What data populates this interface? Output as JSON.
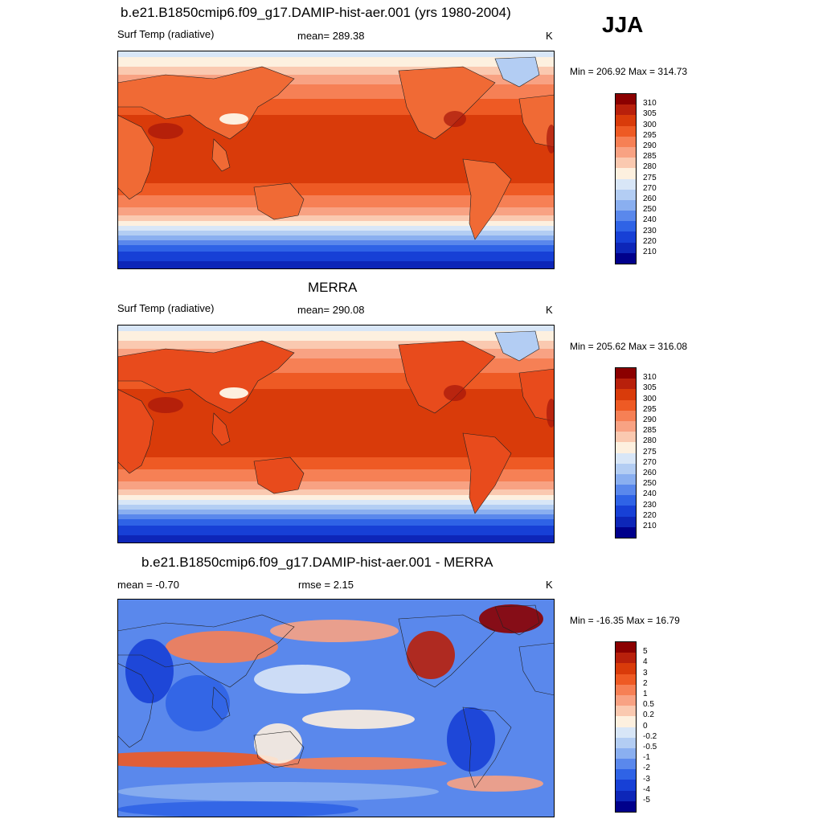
{
  "season": "JJA",
  "panels": [
    {
      "title": "b.e21.B1850cmip6.f09_g17.DAMIP-hist-aer.001 (yrs 1980-2004)",
      "left_label": "Surf Temp (radiative)",
      "center_label": "mean= 289.38",
      "units": "K",
      "minmax": "Min = 206.92 Max = 314.73",
      "colorbar": {
        "labels": [
          "310",
          "305",
          "300",
          "295",
          "290",
          "285",
          "280",
          "275",
          "270",
          "260",
          "250",
          "240",
          "230",
          "220",
          "210"
        ],
        "colors": [
          "#8b0000",
          "#b8200b",
          "#d93b0a",
          "#ee5a24",
          "#f68055",
          "#f8a283",
          "#fac9b0",
          "#fdf0df",
          "#d8e6f7",
          "#b3cdf3",
          "#8aaff0",
          "#5a88ec",
          "#2f63e6",
          "#1740d6",
          "#0d26b8",
          "#00008b"
        ]
      },
      "mapkind": "abs"
    },
    {
      "title": "MERRA",
      "left_label": "Surf Temp (radiative)",
      "center_label": "mean= 290.08",
      "units": "K",
      "minmax": "Min = 205.62 Max = 316.08",
      "colorbar": {
        "labels": [
          "310",
          "305",
          "300",
          "295",
          "290",
          "285",
          "280",
          "275",
          "270",
          "260",
          "250",
          "240",
          "230",
          "220",
          "210"
        ],
        "colors": [
          "#8b0000",
          "#b8200b",
          "#d93b0a",
          "#ee5a24",
          "#f68055",
          "#f8a283",
          "#fac9b0",
          "#fdf0df",
          "#d8e6f7",
          "#b3cdf3",
          "#8aaff0",
          "#5a88ec",
          "#2f63e6",
          "#1740d6",
          "#0d26b8",
          "#00008b"
        ]
      },
      "mapkind": "abs"
    },
    {
      "title": "b.e21.B1850cmip6.f09_g17.DAMIP-hist-aer.001 - MERRA",
      "left_label": "mean =  -0.70",
      "center_label": "rmse =   2.15",
      "units": "K",
      "minmax": "Min = -16.35 Max =  16.79",
      "colorbar": {
        "labels": [
          "5",
          "4",
          "3",
          "2",
          "1",
          "0.5",
          "0.2",
          "0",
          "-0.2",
          "-0.5",
          "-1",
          "-2",
          "-3",
          "-4",
          "-5"
        ],
        "colors": [
          "#8b0000",
          "#b8200b",
          "#d93b0a",
          "#ee5a24",
          "#f68055",
          "#f8a283",
          "#fac9b0",
          "#fdf0df",
          "#d8e6f7",
          "#b3cdf3",
          "#8aaff0",
          "#5a88ec",
          "#2f63e6",
          "#1740d6",
          "#0d26b8",
          "#00008b"
        ]
      },
      "mapkind": "diff"
    }
  ]
}
